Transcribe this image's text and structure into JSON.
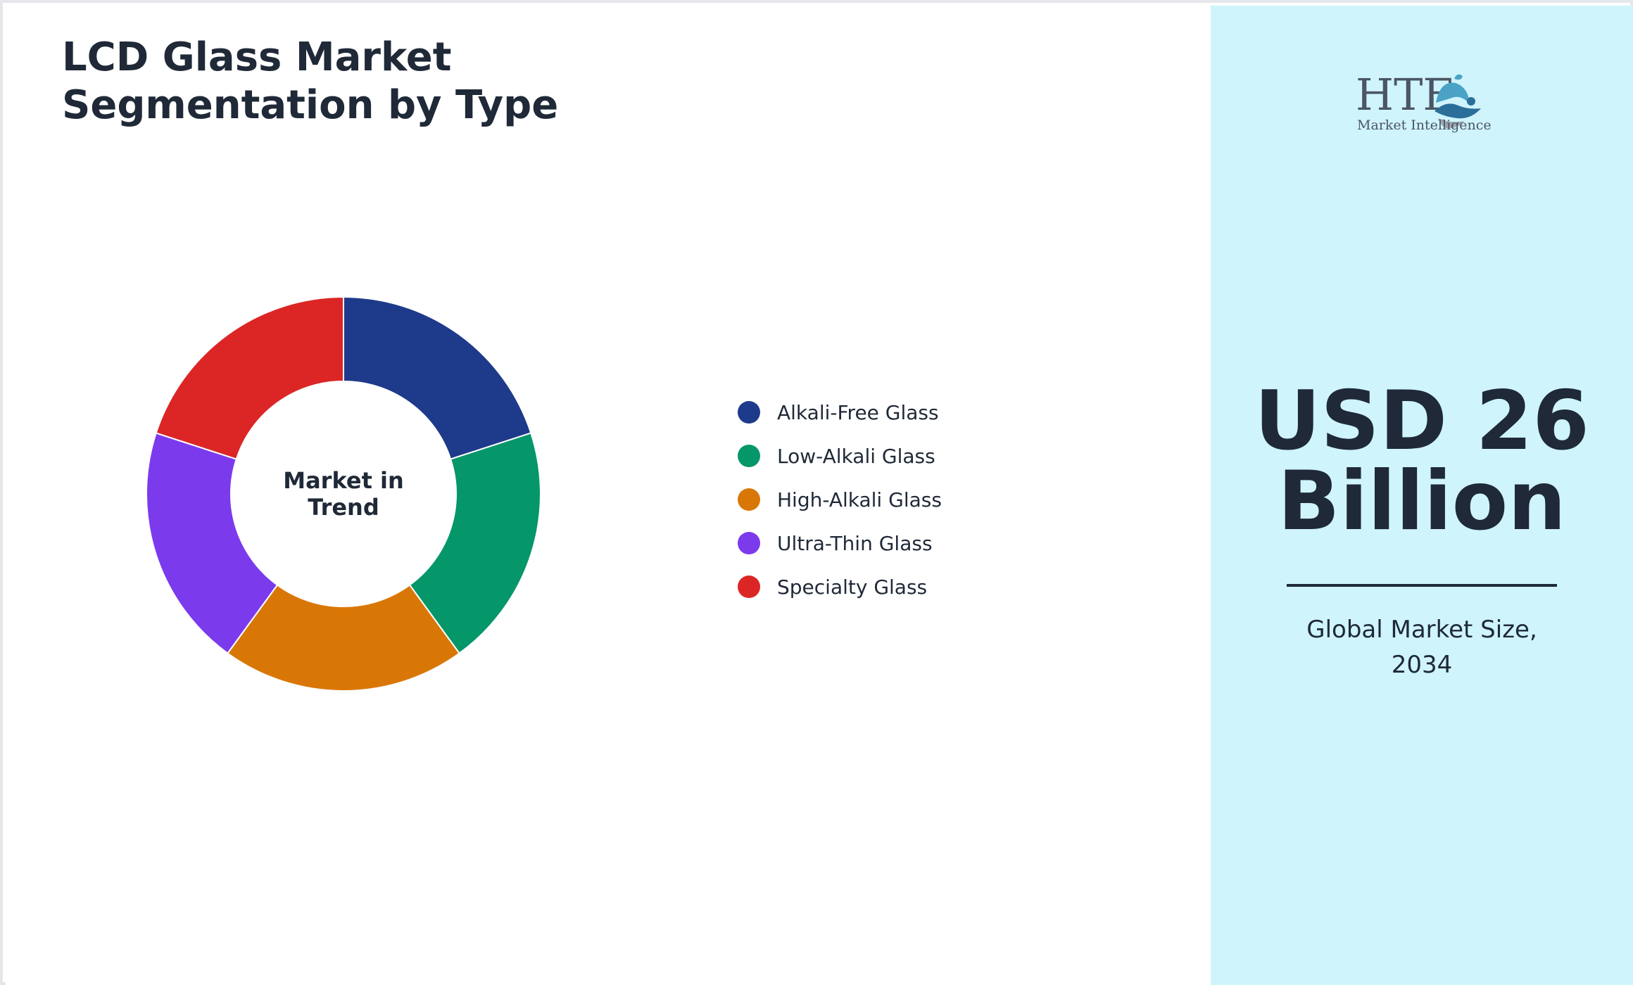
{
  "title": "LCD Glass Market\nSegmentation by Type",
  "chart_data": {
    "type": "pie",
    "variant": "donut",
    "center_label": "Market in\nTrend",
    "categories": [
      "Alkali-Free Glass",
      "Low-Alkali Glass",
      "High-Alkali Glass",
      "Ultra-Thin Glass",
      "Specialty Glass"
    ],
    "values": [
      20,
      20,
      20,
      20,
      20
    ],
    "colors": [
      "#1e3a8a",
      "#059669",
      "#d97706",
      "#7c3aed",
      "#dc2626"
    ],
    "legend_position": "right"
  },
  "side_panel": {
    "logo_text": "HTF",
    "logo_subtext": "Market Intelligence",
    "kpi_value": "USD 26\nBillion",
    "kpi_caption": "Global Market Size,\n2034",
    "background": "#cff4fc"
  },
  "colors": {
    "text": "#1f2937"
  }
}
